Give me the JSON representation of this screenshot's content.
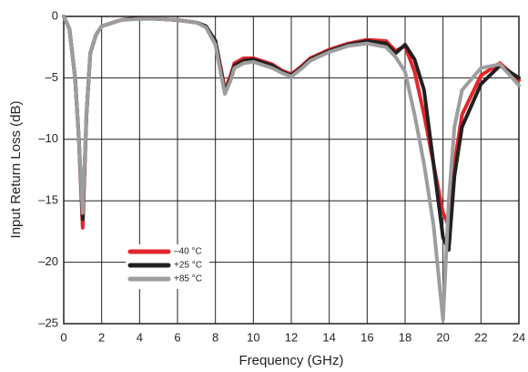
{
  "chart_data": {
    "type": "line",
    "x_label": "Frequency (GHz)",
    "y_label": "Input Return Loss (dB)",
    "x": [
      0,
      0.3,
      0.6,
      0.8,
      1,
      1.2,
      1.4,
      1.7,
      2,
      3,
      4,
      5,
      6,
      7,
      7.5,
      8,
      8.3,
      8.5,
      8.8,
      9,
      9.5,
      10,
      11,
      11.5,
      12,
      12.5,
      13,
      14,
      15,
      16,
      17,
      17.5,
      18,
      18.5,
      19,
      19.5,
      20,
      20.3,
      20.6,
      21,
      22,
      23,
      24
    ],
    "series": [
      {
        "name": "–40 °C",
        "color": "#e3262b",
        "values": [
          0,
          -1,
          -5,
          -10,
          -17.2,
          -8,
          -3,
          -1.5,
          -0.8,
          -0.3,
          -0.1,
          -0.2,
          -0.3,
          -0.5,
          -0.8,
          -2,
          -4.3,
          -6,
          -4.8,
          -3.8,
          -3.4,
          -3.4,
          -3.9,
          -4.4,
          -4.7,
          -4.1,
          -3.4,
          -2.7,
          -2.2,
          -1.9,
          -2,
          -2.8,
          -2.4,
          -4.5,
          -8,
          -12,
          -16,
          -17,
          -12,
          -8,
          -4.8,
          -3.8,
          -5.2
        ]
      },
      {
        "name": "+25 °C",
        "color": "#231f20",
        "values": [
          0,
          -1,
          -5,
          -10,
          -16.5,
          -8,
          -3,
          -1.5,
          -0.8,
          -0.3,
          -0.1,
          -0.2,
          -0.3,
          -0.5,
          -0.8,
          -2,
          -4.5,
          -6.2,
          -5,
          -4,
          -3.6,
          -3.5,
          -4,
          -4.5,
          -4.8,
          -4.2,
          -3.5,
          -2.8,
          -2.3,
          -2,
          -2.2,
          -3,
          -2.3,
          -3.5,
          -6,
          -12,
          -18,
          -19,
          -13,
          -9,
          -5.5,
          -4,
          -5
        ]
      },
      {
        "name": "+85 °C",
        "color": "#9d9d9d",
        "values": [
          0,
          -1,
          -5,
          -10,
          -16,
          -8,
          -3,
          -1.5,
          -0.8,
          -0.3,
          -0.2,
          -0.2,
          -0.3,
          -0.5,
          -0.9,
          -2.3,
          -4.8,
          -6.3,
          -5.2,
          -4.2,
          -3.8,
          -3.7,
          -4.2,
          -4.6,
          -4.9,
          -4.3,
          -3.6,
          -2.9,
          -2.4,
          -2.2,
          -2.5,
          -3.3,
          -4.5,
          -8,
          -12,
          -17,
          -24.7,
          -15,
          -9,
          -6,
          -4.2,
          -3.9,
          -5.6
        ]
      }
    ],
    "xlim": [
      0,
      24
    ],
    "xticks": [
      0,
      2,
      4,
      6,
      8,
      10,
      12,
      14,
      16,
      18,
      20,
      22,
      24
    ],
    "ylim": [
      -25,
      0
    ],
    "yticks": [
      0,
      {
        "value": -5,
        "label": "–5"
      },
      {
        "value": -10,
        "label": "–10"
      },
      {
        "value": -15,
        "label": "–15"
      },
      {
        "value": -20,
        "label": "–20"
      },
      {
        "value": -25,
        "label": "–25"
      }
    ],
    "grid": true,
    "legend": "lower-left"
  }
}
